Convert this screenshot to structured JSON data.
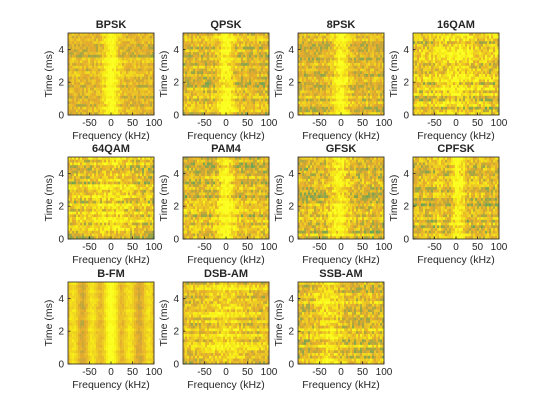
{
  "figure": {
    "background": "#ffffff"
  },
  "chart_data": {
    "type": "heatmap",
    "description_of_panels": "spectrogram grid",
    "colors": {
      "low": "#5fa45a",
      "mid": "#e3a92f",
      "high": "#f8ee17",
      "peak": "#fbff22"
    },
    "xlabel": "Frequency (kHz)",
    "ylabel": "Time (ms)",
    "xlim": [
      -100,
      100
    ],
    "ylim": [
      0,
      5
    ],
    "xticks": [
      -50,
      0,
      50,
      100
    ],
    "yticks": [
      0,
      2,
      4
    ],
    "xtick_labels": [
      "-50",
      "0",
      "50",
      "100"
    ],
    "ytick_labels": [
      "0",
      "2",
      "4"
    ],
    "panels": [
      {
        "title": "BPSK",
        "profile": "narrow-center",
        "noise": 0.35
      },
      {
        "title": "QPSK",
        "profile": "narrow-center",
        "noise": 0.45
      },
      {
        "title": "8PSK",
        "profile": "narrow-center",
        "noise": 0.4
      },
      {
        "title": "16QAM",
        "profile": "wide-flat",
        "noise": 0.6
      },
      {
        "title": "64QAM",
        "profile": "wide-flat",
        "noise": 0.55
      },
      {
        "title": "PAM4",
        "profile": "narrow-center",
        "noise": 0.5
      },
      {
        "title": "GFSK",
        "profile": "center-bands",
        "noise": 0.5
      },
      {
        "title": "CPFSK",
        "profile": "two-tone",
        "noise": 0.5
      },
      {
        "title": "B-FM",
        "profile": "vertical-stripes",
        "noise": 0.15
      },
      {
        "title": "DSB-AM",
        "profile": "wide-flat",
        "noise": 0.45
      },
      {
        "title": "SSB-AM",
        "profile": "left-bright",
        "noise": 0.5
      }
    ]
  }
}
